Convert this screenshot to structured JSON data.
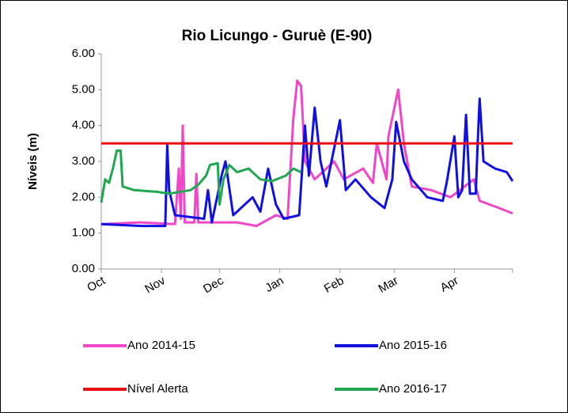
{
  "chart_data": {
    "type": "line",
    "title": "Rio Licungo - Guruè (E-90)",
    "y_label": "Níveis (m)",
    "xlim": [
      0,
      212
    ],
    "xticks": [
      {
        "value": 0,
        "label": "Oct"
      },
      {
        "value": 31,
        "label": "Nov"
      },
      {
        "value": 61,
        "label": "Dec"
      },
      {
        "value": 92,
        "label": "Jan"
      },
      {
        "value": 123,
        "label": "Feb"
      },
      {
        "value": 151,
        "label": "Mar"
      },
      {
        "value": 182,
        "label": "Apr"
      }
    ],
    "ylim": [
      0,
      6
    ],
    "yticks": [
      {
        "value": 0,
        "label": "0.00"
      },
      {
        "value": 1,
        "label": "1.00"
      },
      {
        "value": 2,
        "label": "2.00"
      },
      {
        "value": 3,
        "label": "3.00"
      },
      {
        "value": 4,
        "label": "4.00"
      },
      {
        "value": 5,
        "label": "5.00"
      },
      {
        "value": 6,
        "label": "6.00"
      }
    ],
    "series": [
      {
        "name": "Ano 2014-15",
        "color": "#f047c8",
        "x": [
          0,
          20,
          38,
          40,
          41,
          42,
          43,
          48,
          49,
          50,
          70,
          80,
          90,
          96,
          99,
          101,
          103,
          105,
          110,
          120,
          125,
          135,
          140,
          142,
          147,
          148,
          153,
          156,
          160,
          170,
          180,
          192,
          195,
          205,
          212
        ],
        "values": [
          1.25,
          1.3,
          1.25,
          2.8,
          1.4,
          4.0,
          1.3,
          1.3,
          2.65,
          1.3,
          1.3,
          1.2,
          1.5,
          1.4,
          4.2,
          5.25,
          5.1,
          3.0,
          2.5,
          3.0,
          2.5,
          2.8,
          2.4,
          3.5,
          2.5,
          3.7,
          5.0,
          3.5,
          2.3,
          2.2,
          2.0,
          2.5,
          1.9,
          1.7,
          1.55
        ]
      },
      {
        "name": "Ano 2015-16",
        "color": "#1010e0",
        "x": [
          0,
          21,
          33,
          34,
          35,
          38,
          53,
          55,
          57,
          62,
          64,
          68,
          78,
          82,
          86,
          90,
          94,
          102,
          105,
          107,
          110,
          113,
          116,
          123,
          126,
          131,
          139,
          146,
          150,
          152,
          156,
          160,
          168,
          176,
          178,
          182,
          184,
          186,
          188,
          190,
          193,
          194,
          195,
          197,
          203,
          209,
          212
        ],
        "values": [
          1.25,
          1.2,
          1.2,
          3.45,
          2.2,
          1.5,
          1.4,
          2.2,
          1.3,
          2.6,
          3.0,
          1.5,
          2.0,
          1.6,
          2.8,
          1.8,
          1.4,
          1.5,
          4.0,
          2.6,
          4.5,
          3.0,
          2.3,
          4.15,
          2.2,
          2.5,
          2.0,
          1.7,
          2.5,
          4.1,
          3.0,
          2.5,
          2.0,
          1.9,
          2.4,
          3.7,
          2.0,
          2.2,
          4.3,
          2.1,
          2.1,
          3.5,
          4.75,
          3.0,
          2.8,
          2.7,
          2.45
        ]
      },
      {
        "name": "Nível Alerta",
        "color": "#e81010",
        "x": [
          0,
          212
        ],
        "values": [
          3.5,
          3.5
        ]
      },
      {
        "name": "Ano 2016-17",
        "color": "#1fa84f",
        "x": [
          0,
          2,
          4,
          6,
          8,
          10,
          11,
          17,
          29,
          35,
          46,
          50,
          54,
          56,
          60,
          61,
          63,
          66,
          70,
          76,
          82,
          88,
          95,
          99,
          103
        ],
        "values": [
          1.85,
          2.5,
          2.4,
          2.8,
          3.3,
          3.3,
          2.3,
          2.2,
          2.15,
          2.1,
          2.2,
          2.35,
          2.6,
          2.9,
          2.95,
          1.8,
          2.5,
          2.9,
          2.7,
          2.8,
          2.5,
          2.45,
          2.6,
          2.8,
          2.7
        ]
      }
    ]
  }
}
